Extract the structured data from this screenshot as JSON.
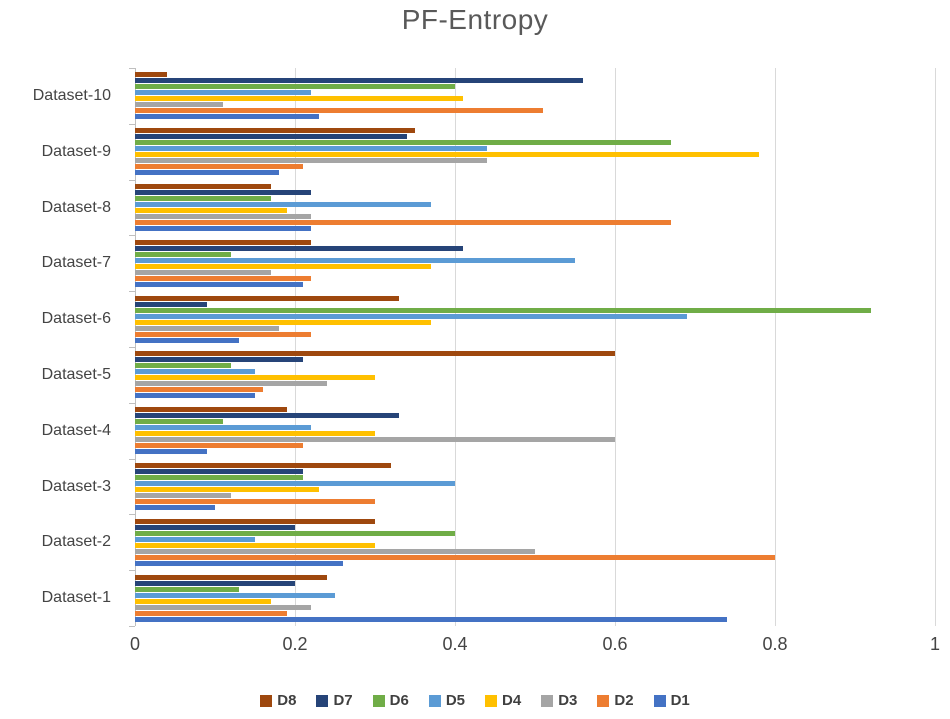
{
  "chart_data": {
    "type": "bar",
    "orientation": "horizontal",
    "title": "PF-Entropy",
    "xlabel": "",
    "ylabel": "",
    "xlim": [
      0,
      1
    ],
    "grid": true,
    "legend_position": "bottom",
    "categories": [
      "Dataset-1",
      "Dataset-2",
      "Dataset-3",
      "Dataset-4",
      "Dataset-5",
      "Dataset-6",
      "Dataset-7",
      "Dataset-8",
      "Dataset-9",
      "Dataset-10"
    ],
    "x_ticks": [
      "0",
      "0.2",
      "0.4",
      "0.6",
      "0.8",
      "1"
    ],
    "series": [
      {
        "name": "D8",
        "color": "#9E480E",
        "values": [
          0.24,
          0.3,
          0.32,
          0.19,
          0.6,
          0.33,
          0.22,
          0.17,
          0.35,
          0.04
        ]
      },
      {
        "name": "D7",
        "color": "#264478",
        "values": [
          0.2,
          0.2,
          0.21,
          0.33,
          0.21,
          0.09,
          0.41,
          0.22,
          0.34,
          0.56
        ]
      },
      {
        "name": "D6",
        "color": "#70AD47",
        "values": [
          0.13,
          0.4,
          0.21,
          0.11,
          0.12,
          0.92,
          0.12,
          0.17,
          0.67,
          0.4
        ]
      },
      {
        "name": "D5",
        "color": "#5B9BD5",
        "values": [
          0.25,
          0.15,
          0.4,
          0.22,
          0.15,
          0.69,
          0.55,
          0.37,
          0.44,
          0.22
        ]
      },
      {
        "name": "D4",
        "color": "#FFC000",
        "values": [
          0.17,
          0.3,
          0.23,
          0.3,
          0.3,
          0.37,
          0.37,
          0.19,
          0.78,
          0.41
        ]
      },
      {
        "name": "D3",
        "color": "#A5A5A5",
        "values": [
          0.22,
          0.5,
          0.12,
          0.6,
          0.24,
          0.18,
          0.17,
          0.22,
          0.44,
          0.11
        ]
      },
      {
        "name": "D2",
        "color": "#ED7D31",
        "values": [
          0.19,
          0.8,
          0.3,
          0.21,
          0.16,
          0.22,
          0.22,
          0.67,
          0.21,
          0.51
        ]
      },
      {
        "name": "D1",
        "color": "#4472C4",
        "values": [
          0.74,
          0.26,
          0.1,
          0.09,
          0.15,
          0.13,
          0.21,
          0.22,
          0.18,
          0.23
        ]
      }
    ]
  }
}
